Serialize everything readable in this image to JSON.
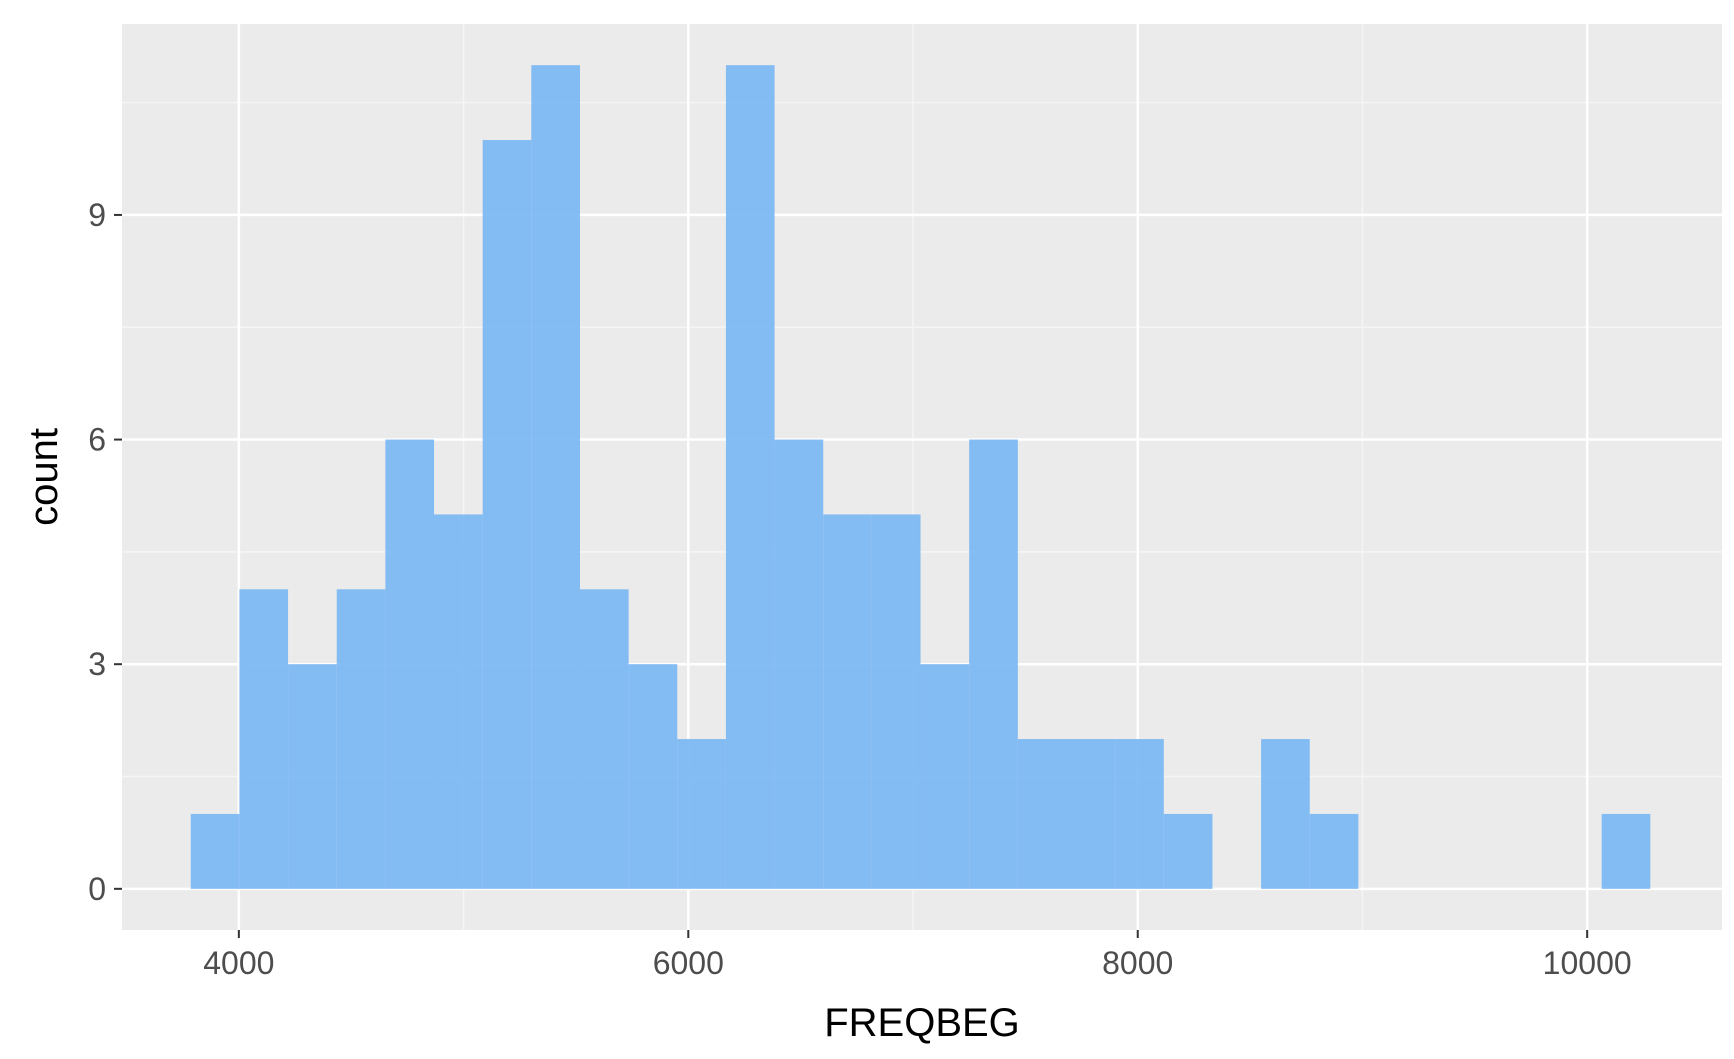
{
  "chart_data": {
    "type": "bar",
    "subtype": "histogram",
    "title": "",
    "xlabel": "FREQBEG",
    "ylabel": "count",
    "xlim": [
      3480,
      10600
    ],
    "ylim": [
      -0.55,
      11.55
    ],
    "xticks": [
      4000,
      6000,
      8000,
      10000
    ],
    "yticks": [
      0,
      3,
      6,
      9
    ],
    "grid": true,
    "legend": "none",
    "bin_width": 216.5,
    "first_bin_left": 3786,
    "bins": [
      {
        "x_start": 3786,
        "x_end": 4002.5,
        "count": 1
      },
      {
        "x_start": 4002.5,
        "x_end": 4219,
        "count": 4
      },
      {
        "x_start": 4219,
        "x_end": 4435.5,
        "count": 3
      },
      {
        "x_start": 4435.5,
        "x_end": 4652,
        "count": 4
      },
      {
        "x_start": 4652,
        "x_end": 4868.5,
        "count": 6
      },
      {
        "x_start": 4868.5,
        "x_end": 5085,
        "count": 5
      },
      {
        "x_start": 5085,
        "x_end": 5301.5,
        "count": 10
      },
      {
        "x_start": 5301.5,
        "x_end": 5518,
        "count": 11
      },
      {
        "x_start": 5518,
        "x_end": 5734.5,
        "count": 4
      },
      {
        "x_start": 5734.5,
        "x_end": 5951,
        "count": 3
      },
      {
        "x_start": 5951,
        "x_end": 6167.5,
        "count": 2
      },
      {
        "x_start": 6167.5,
        "x_end": 6384,
        "count": 11
      },
      {
        "x_start": 6384,
        "x_end": 6600.5,
        "count": 6
      },
      {
        "x_start": 6600.5,
        "x_end": 6817,
        "count": 5
      },
      {
        "x_start": 6817,
        "x_end": 7033.5,
        "count": 5
      },
      {
        "x_start": 7033.5,
        "x_end": 7250,
        "count": 3
      },
      {
        "x_start": 7250,
        "x_end": 7466.5,
        "count": 6
      },
      {
        "x_start": 7466.5,
        "x_end": 7683,
        "count": 2
      },
      {
        "x_start": 7683,
        "x_end": 7899.5,
        "count": 2
      },
      {
        "x_start": 7899.5,
        "x_end": 8116,
        "count": 2
      },
      {
        "x_start": 8116,
        "x_end": 8332.5,
        "count": 1
      },
      {
        "x_start": 8332.5,
        "x_end": 8549,
        "count": 0
      },
      {
        "x_start": 8549,
        "x_end": 8765.5,
        "count": 2
      },
      {
        "x_start": 8765.5,
        "x_end": 8982,
        "count": 1
      },
      {
        "x_start": 8982,
        "x_end": 9198.5,
        "count": 0
      },
      {
        "x_start": 9198.5,
        "x_end": 9415,
        "count": 0
      },
      {
        "x_start": 9415,
        "x_end": 9631.5,
        "count": 0
      },
      {
        "x_start": 9631.5,
        "x_end": 9848,
        "count": 0
      },
      {
        "x_start": 9848,
        "x_end": 10064.5,
        "count": 0
      },
      {
        "x_start": 10064.5,
        "x_end": 10281,
        "count": 1
      }
    ],
    "colors": {
      "panel_background": "#ebebeb",
      "grid_major": "#ffffff",
      "grid_minor": "#f5f5f5",
      "bar_fill": "#7db8f3",
      "tick_mark": "#333333",
      "tick_label": "#4d4d4d",
      "axis_title": "#000000"
    }
  }
}
